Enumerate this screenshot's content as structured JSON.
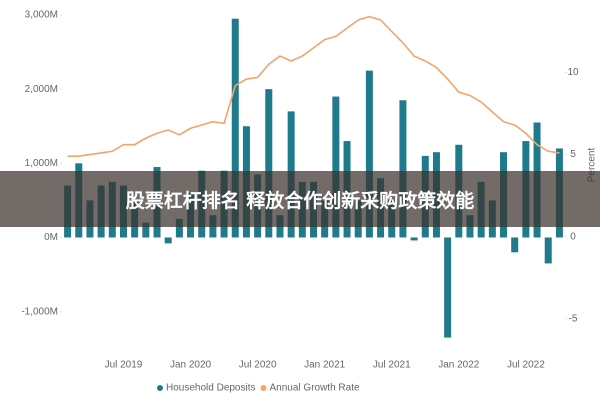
{
  "chart_data": {
    "type": "bar",
    "categories": [
      null,
      null,
      null,
      null,
      null,
      "Jul 2019",
      null,
      null,
      null,
      null,
      null,
      "Jan 2020",
      null,
      null,
      null,
      null,
      null,
      "Jul 2020",
      null,
      null,
      null,
      null,
      null,
      "Jan 2021",
      null,
      null,
      null,
      null,
      null,
      "Jul 2021",
      null,
      null,
      null,
      null,
      null,
      "Jan 2022",
      null,
      null,
      null,
      null,
      null,
      "Jul 2022",
      null,
      null,
      null
    ],
    "series": [
      {
        "name": "Household Deposits",
        "type": "bar",
        "color": "#1f7a8c",
        "values": [
          700,
          1000,
          500,
          700,
          750,
          700,
          500,
          200,
          950,
          -80,
          250,
          600,
          900,
          300,
          900,
          2950,
          1500,
          850,
          2000,
          300,
          1700,
          750,
          750,
          500,
          1900,
          1300,
          500,
          2250,
          800,
          500,
          1850,
          -40,
          1100,
          1150,
          -1350,
          1250,
          300,
          750,
          500,
          1150,
          -200,
          1300,
          1550,
          -350,
          1200
        ]
      },
      {
        "name": "Annual Growth Rate",
        "type": "line",
        "axis": "y2",
        "color": "#f4a46a",
        "values": [
          4.9,
          4.9,
          5.0,
          5.1,
          5.2,
          5.6,
          5.6,
          6.0,
          6.3,
          6.5,
          6.2,
          6.6,
          6.8,
          7.0,
          6.9,
          9.2,
          9.6,
          9.7,
          10.5,
          11.0,
          10.7,
          11.0,
          11.5,
          12.0,
          12.2,
          12.7,
          13.2,
          13.4,
          13.2,
          12.5,
          11.8,
          11.0,
          10.7,
          10.3,
          9.6,
          8.8,
          8.6,
          8.2,
          7.6,
          7.0,
          6.8,
          6.3,
          5.6,
          5.2,
          5.1
        ]
      }
    ],
    "ylim": [
      -1450,
      3000
    ],
    "yticks": [
      {
        "value": -1000,
        "label": "-1,000M"
      },
      {
        "value": 0,
        "label": "0M"
      },
      {
        "value": 1000,
        "label": "1,000M"
      },
      {
        "value": 2000,
        "label": "2,000M"
      },
      {
        "value": 3000,
        "label": "3,000M"
      }
    ],
    "y2lim": [
      -6.6,
      13.5
    ],
    "y2ticks": [
      -5,
      0,
      5,
      10
    ],
    "y2label": "Percent"
  },
  "banner": "股票杠杆排名 释放合作创新采购政策效能"
}
